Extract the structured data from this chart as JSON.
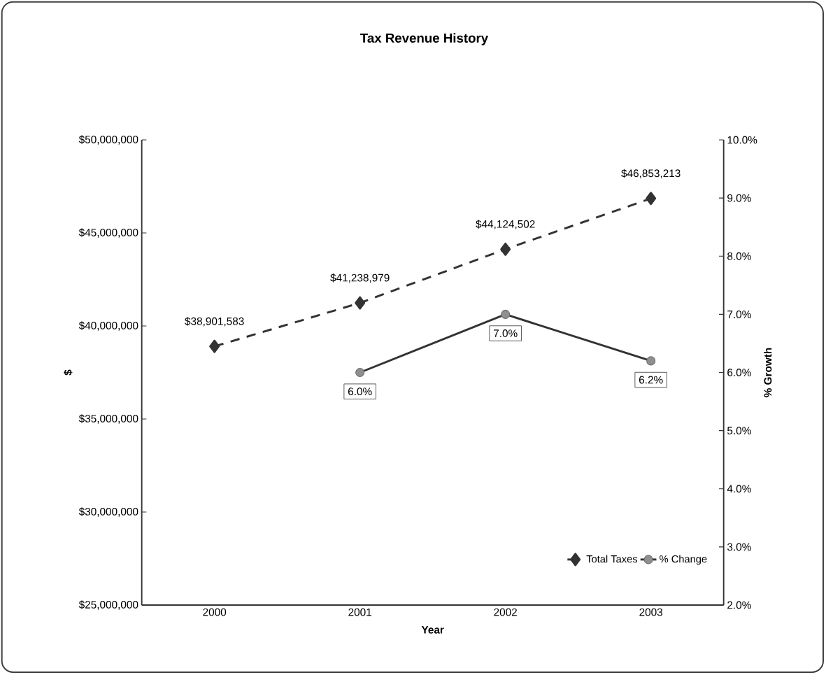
{
  "chart_data": {
    "type": "line",
    "title": "Tax Revenue History",
    "xlabel": "Year",
    "ylabel": "$",
    "y2label": "% Growth",
    "categories": [
      "2000",
      "2001",
      "2002",
      "2003"
    ],
    "series": [
      {
        "name": "Total Taxes",
        "color": "#333333",
        "values": [
          38901583,
          41238979,
          44124502,
          46853213
        ],
        "marker": "diamond",
        "line_style": "dashed",
        "value_labels": [
          "$38,901,583",
          "$41,238,979",
          "$44,124,502",
          "$46,853,213"
        ]
      },
      {
        "name": "% Change",
        "color": "#333333",
        "axis": "y2",
        "values": [
          null,
          6.0,
          7.0,
          6.2
        ],
        "marker": "circle",
        "line_style": "solid",
        "value_labels": [
          null,
          "6.0%",
          "7.0%",
          "6.2%"
        ]
      }
    ],
    "ylim": [
      25000000,
      50000000
    ],
    "yticks": [
      {
        "value": 25000000,
        "label": "$25,000,000"
      },
      {
        "value": 30000000,
        "label": "$30,000,000"
      },
      {
        "value": 35000000,
        "label": "$35,000,000"
      },
      {
        "value": 40000000,
        "label": "$40,000,000"
      },
      {
        "value": 45000000,
        "label": "$45,000,000"
      },
      {
        "value": 50000000,
        "label": "$50,000,000"
      }
    ],
    "y2lim": [
      2,
      10
    ],
    "y2ticks": [
      {
        "value": 2,
        "label": "2.0%"
      },
      {
        "value": 3,
        "label": "3.0%"
      },
      {
        "value": 4,
        "label": "4.0%"
      },
      {
        "value": 5,
        "label": "5.0%"
      },
      {
        "value": 6,
        "label": "6.0%"
      },
      {
        "value": 7,
        "label": "7.0%"
      },
      {
        "value": 8,
        "label": "8.0%"
      },
      {
        "value": 9,
        "label": "9.0%"
      },
      {
        "value": 10,
        "label": "10.0%"
      }
    ],
    "legend": "bottom right"
  }
}
